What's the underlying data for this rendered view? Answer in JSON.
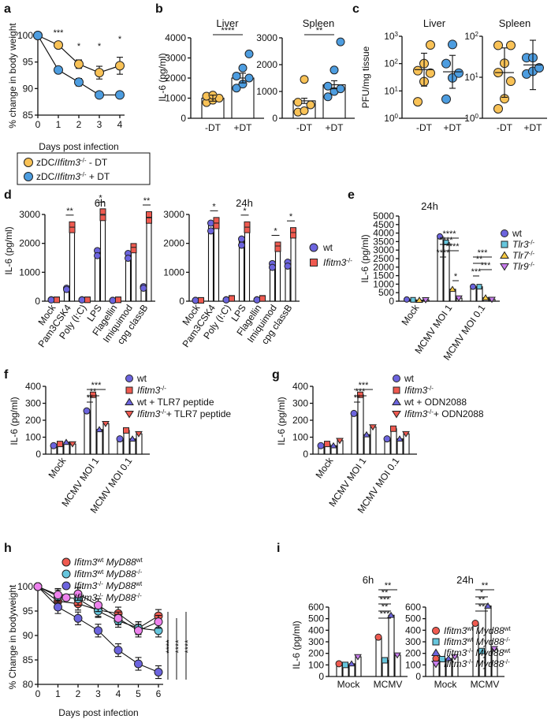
{
  "colors": {
    "orange": "#f9c256",
    "blue": "#4d9de0",
    "red": "#ef5a50",
    "cyan": "#66c6dd",
    "yellow": "#f5c842",
    "purple": "#b87de0",
    "violet": "#6c64de",
    "pink": "#ee82ee",
    "lavender": "#c87ded"
  },
  "chart_data": [
    {
      "panel": "a",
      "type": "line",
      "xlabel": "Days post infection",
      "ylabel": "% change in body weight",
      "xlim": [
        0,
        4
      ],
      "ylim": [
        85,
        100
      ],
      "xticks": [
        "0",
        "1",
        "2",
        "3",
        "4"
      ],
      "yticks": [
        "85",
        "90",
        "95",
        "100"
      ],
      "series": [
        {
          "name": "zDC/Ifitm3-/- - DT",
          "color": "orange",
          "x": [
            0,
            1,
            2,
            3,
            4
          ],
          "y": [
            100,
            98.2,
            94.6,
            93,
            94.3
          ],
          "err": [
            0,
            0.4,
            0.8,
            1.2,
            1.6
          ]
        },
        {
          "name": "zDC/Ifitm3-/- + DT",
          "color": "blue",
          "x": [
            0,
            1,
            2,
            3,
            4
          ],
          "y": [
            100,
            93.5,
            91.2,
            88.8,
            88.8
          ],
          "err": [
            0,
            0.6,
            0.7,
            0.6,
            0.6
          ]
        }
      ],
      "annotations": [
        {
          "x": 1,
          "text": "***"
        },
        {
          "x": 2,
          "text": "*"
        },
        {
          "x": 3,
          "text": "*"
        },
        {
          "x": 4,
          "text": "*"
        }
      ],
      "legend": [
        {
          "pre": "zDC/",
          "it": "Ifitm3",
          "sup": "-/-",
          "post": " - DT",
          "color": "orange"
        },
        {
          "pre": "zDC/",
          "it": "Ifitm3",
          "sup": "-/-",
          "post": " + DT",
          "color": "blue"
        }
      ]
    },
    {
      "panel": "b",
      "type": "bar",
      "title_left": "Liver",
      "title_right": "Spleen",
      "ylabel": "IL-6 (pg/ml)",
      "left": {
        "ylim": [
          0,
          4000
        ],
        "yticks": [
          "0",
          "1000",
          "2000",
          "3000",
          "4000"
        ],
        "categories": [
          "-DT",
          "+DT"
        ],
        "values": [
          1000,
          2000
        ],
        "sig": "****",
        "points": [
          [
            780,
            900,
            1000,
            1100,
            1150
          ],
          [
            1500,
            1700,
            2000,
            2100,
            2500,
            3200
          ]
        ]
      },
      "right": {
        "ylim": [
          0,
          3000
        ],
        "yticks": [
          "0",
          "1000",
          "2000",
          "3000"
        ],
        "categories": [
          "-DT",
          "+DT"
        ],
        "values": [
          650,
          1250
        ],
        "sig": "**",
        "points": [
          [
            230,
            280,
            500,
            600,
            1450
          ],
          [
            800,
            1000,
            1100,
            1200,
            1800,
            2850
          ]
        ]
      }
    },
    {
      "panel": "c",
      "type": "scatter",
      "ylabel": "PFU/mg tissue",
      "left": {
        "title": "Liver",
        "ylim_log": [
          1,
          1000
        ],
        "yticks": [
          "10",
          "10",
          "10",
          "10"
        ],
        "yexp": [
          "0",
          "1",
          "2",
          "3"
        ],
        "categories": [
          "-DT",
          "+DT"
        ],
        "points": [
          [
            4,
            22,
            45,
            55,
            100,
            480
          ],
          [
            5,
            30,
            45,
            100,
            500
          ]
        ],
        "mean": [
          60,
          50
        ]
      },
      "right": {
        "title": "Spleen",
        "ylim_log": [
          1,
          100
        ],
        "yticks": [
          "10",
          "10",
          "10"
        ],
        "yexp": [
          "0",
          "1",
          "2"
        ],
        "categories": [
          "-DT",
          "+DT"
        ],
        "points": [
          [
            1.7,
            3,
            8,
            13,
            22,
            60,
            60
          ],
          [
            12,
            14,
            17,
            30,
            30
          ]
        ],
        "mean": [
          13,
          20
        ]
      }
    },
    {
      "panel": "d",
      "type": "bar",
      "ylabel": "IL-6 (pg/ml)",
      "ylim": [
        0,
        3000
      ],
      "yticks": [
        "0",
        "1000",
        "2000",
        "3000"
      ],
      "categories": [
        "Mock",
        "Pam3CSK4",
        "Poly (I:C)",
        "LPS",
        "Flagellin",
        "Imiquimod",
        "cpg classB"
      ],
      "title_6h": "6h",
      "title_24h": "24h",
      "wt_6h": [
        50,
        450,
        50,
        1750,
        30,
        1650,
        500
      ],
      "ko_6h": [
        50,
        2650,
        50,
        3100,
        50,
        1900,
        3000
      ],
      "wt_24h": [
        30,
        2700,
        50,
        2150,
        50,
        1300,
        1350
      ],
      "ko_24h": [
        30,
        2800,
        100,
        2650,
        100,
        1950,
        2450
      ],
      "sig_6h": [
        "",
        "**",
        "",
        "*",
        "",
        "",
        "**"
      ],
      "sig_24h": [
        "",
        "*",
        "",
        "*",
        "",
        "*",
        "*"
      ],
      "legend": [
        {
          "name": "wt",
          "color": "violet"
        },
        {
          "name": "Ifitm3",
          "sup": "-/-",
          "color": "red"
        }
      ]
    },
    {
      "panel": "e",
      "type": "bar",
      "title": "24h",
      "ylabel": "IL-6 (pg/ml)",
      "ylim": [
        0,
        5000
      ],
      "yticks": [
        "0",
        "500",
        "1000",
        "1500",
        "2000",
        "2500",
        "3000",
        "3500",
        "4000",
        "4500",
        "5000"
      ],
      "categories": [
        "Mock",
        "MCMV MOI 1",
        "MCMV MOI 0.1"
      ],
      "values": [
        [
          100,
          80,
          60,
          80
        ],
        [
          3800,
          3450,
          700,
          180
        ],
        [
          850,
          850,
          200,
          100
        ]
      ],
      "legend": [
        {
          "name": "wt",
          "color": "violet"
        },
        {
          "name": "Tlr3",
          "sup": "-/-",
          "color": "cyan"
        },
        {
          "name": "Tlr7",
          "sup": "-/-",
          "color": "yellow"
        },
        {
          "name": "Tlr9",
          "sup": "-/-",
          "color": "lavender"
        }
      ],
      "sig": [
        "****",
        "****",
        "****",
        "****",
        "*",
        "***",
        "**",
        "***",
        "***"
      ]
    },
    {
      "panel": "f",
      "type": "bar",
      "ylabel": "IL-6 (pg/ml)",
      "ylim": [
        0,
        400
      ],
      "yticks": [
        "0",
        "100",
        "200",
        "300",
        "400"
      ],
      "categories": [
        "Mock",
        "MCMV MOI 1",
        "MCMV MOI 0.1"
      ],
      "values": [
        [
          50,
          60,
          70,
          60
        ],
        [
          255,
          350,
          145,
          180
        ],
        [
          90,
          140,
          90,
          120
        ]
      ],
      "legend": [
        {
          "name": "wt",
          "color": "violet"
        },
        {
          "name": "Ifitm3",
          "sup": "-/-",
          "color": "red"
        },
        {
          "name": "wt + TLR7 peptide",
          "color": "violet"
        },
        {
          "name": "Ifitm3",
          "sup": "-/-",
          "post": "+ TLR7 peptide",
          "color": "red"
        }
      ],
      "sig": [
        "***",
        "**",
        "**"
      ]
    },
    {
      "panel": "g",
      "type": "bar",
      "ylabel": "IL-6 (pg/ml)",
      "ylim": [
        0,
        400
      ],
      "yticks": [
        "0",
        "100",
        "200",
        "300",
        "400"
      ],
      "categories": [
        "Mock",
        "MCMV MOI 1",
        "MCMV MOI 0.1"
      ],
      "values": [
        [
          50,
          60,
          50,
          80
        ],
        [
          240,
          350,
          115,
          160
        ],
        [
          90,
          150,
          90,
          120
        ]
      ],
      "legend": [
        {
          "name": "wt",
          "color": "violet"
        },
        {
          "name": "Ifitm3",
          "sup": "-/-",
          "color": "red"
        },
        {
          "name": "wt + ODN2088",
          "color": "violet"
        },
        {
          "name": "Ifitm3",
          "sup": "-/-",
          "post": "+ ODN2088",
          "color": "red"
        }
      ],
      "sig": [
        "***",
        "***",
        "**"
      ]
    },
    {
      "panel": "h",
      "type": "line",
      "xlabel": "Days post infection",
      "ylabel": "% Change in bodyweight",
      "xlim": [
        0,
        6
      ],
      "ylim": [
        80,
        100
      ],
      "xticks": [
        "0",
        "1",
        "2",
        "3",
        "4",
        "5",
        "6"
      ],
      "yticks": [
        "80",
        "85",
        "90",
        "95",
        "100"
      ],
      "series": [
        {
          "name": "Ifitm3wt MyD88wt",
          "color": "red",
          "y": [
            100,
            97,
            96.5,
            95.2,
            94.5,
            91.5,
            94
          ]
        },
        {
          "name": "Ifitm3wt MyD88-/-",
          "color": "cyan",
          "y": [
            100,
            98,
            97.5,
            95,
            93,
            91.5,
            91
          ]
        },
        {
          "name": "Ifitm3-/- MyD88wt",
          "color": "violet",
          "y": [
            100,
            95.8,
            93.5,
            91,
            87,
            84.2,
            82.5
          ]
        },
        {
          "name": "Ifitm3-/- MyD88-/-",
          "color": "pink",
          "y": [
            100,
            98.3,
            98.5,
            96.2,
            93.5,
            91,
            92.8
          ]
        }
      ],
      "sig": [
        "****",
        "****",
        "****"
      ],
      "legend": [
        {
          "it": "Ifitm3",
          "sup": "wt",
          "it2": " MyD88",
          "sup2": "wt",
          "color": "red"
        },
        {
          "it": "Ifitm3",
          "sup": "wt",
          "it2": " MyD88",
          "sup2": "-/-",
          "color": "cyan"
        },
        {
          "it": "Ifitm3",
          "sup": "-/-",
          "it2": " MyD88",
          "sup2": "wt",
          "color": "violet"
        },
        {
          "it": "Ifitm3",
          "sup": "-/-",
          "it2": " MyD88",
          "sup2": "-/-",
          "color": "pink"
        }
      ]
    },
    {
      "panel": "i",
      "type": "bar",
      "ylabel": "IL-6 (pg/ml)",
      "ylim": [
        0,
        600
      ],
      "yticks": [
        "0",
        "100",
        "200",
        "300",
        "400",
        "500",
        "600"
      ],
      "title_6h": "6h",
      "title_24h": "24h",
      "categories": [
        "Mock",
        "MCMV"
      ],
      "values_6h": [
        [
          110,
          100,
          110,
          170
        ],
        [
          340,
          140,
          530,
          185
        ]
      ],
      "values_24h": [
        [
          155,
          150,
          155,
          170
        ],
        [
          460,
          220,
          610,
          240
        ]
      ],
      "sig_6h": [
        "**",
        "**",
        "***",
        "**",
        "***"
      ],
      "sig_24h": [
        "**",
        "*",
        "**",
        "**"
      ],
      "legend": [
        {
          "it": "Ifitm3",
          "sup": "wt",
          "it2": " Myd88",
          "sup2": "wt",
          "color": "red"
        },
        {
          "it": "Ifitm3",
          "sup": "wt",
          "it2": " Myd88",
          "sup2": "-/-",
          "color": "cyan"
        },
        {
          "it": "Ifitm3",
          "sup": "-/-",
          "it2": " Myd88",
          "sup2": "wt",
          "color": "violet"
        },
        {
          "it": "Ifitm3",
          "sup": "-/-",
          "it2": " Myd88",
          "sup2": "-/-",
          "color": "lavender"
        }
      ]
    }
  ]
}
